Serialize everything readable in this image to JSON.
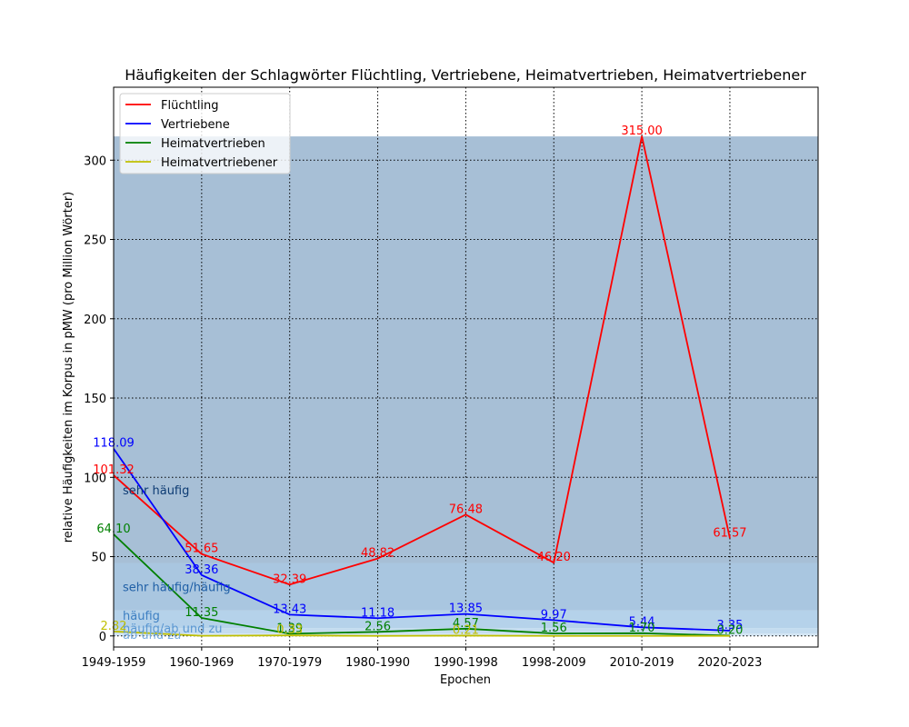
{
  "chart_data": {
    "type": "line",
    "title": "Häufigkeiten der Schlagwörter Flüchtling, Vertriebene, Heimatvertrieben, Heimatvertriebener",
    "xlabel": "Epochen",
    "ylabel": "relative Häufigkeiten im Korpus in pMW (pro Million Wörter)",
    "categories": [
      "1949-1959",
      "1960-1969",
      "1970-1979",
      "1980-1990",
      "1990-1998",
      "1998-2009",
      "2010-2019",
      "2020-2023"
    ],
    "ylim": [
      -7,
      346
    ],
    "yticks": [
      0,
      50,
      100,
      150,
      200,
      250,
      300
    ],
    "grid": true,
    "grid_style": "dotted",
    "legend_position": "top-left",
    "series": [
      {
        "name": "Flüchtling",
        "color": "#ff0000",
        "values": [
          101.32,
          51.65,
          32.39,
          48.82,
          76.48,
          46.2,
          315.0,
          61.57
        ],
        "labels": [
          "101.32",
          "51.65",
          "32.39",
          "48.82",
          "76.48",
          "46.20",
          "315.00",
          "61.57"
        ]
      },
      {
        "name": "Vertriebene",
        "color": "#0000ff",
        "values": [
          118.09,
          38.36,
          13.43,
          11.18,
          13.85,
          9.97,
          5.44,
          3.35
        ],
        "labels": [
          "118.09",
          "38.36",
          "13.43",
          "11.18",
          "13.85",
          "9.97",
          "5.44",
          "3.35"
        ]
      },
      {
        "name": "Heimatvertrieben",
        "color": "#008000",
        "values": [
          64.1,
          11.35,
          1.39,
          2.56,
          4.57,
          1.56,
          1.7,
          0.2
        ],
        "labels": [
          "64.10",
          "11.35",
          "1.39",
          "2.56",
          "4.57",
          "1.56",
          "1.70",
          "0.20"
        ]
      },
      {
        "name": "Heimatvertriebener",
        "color": "#bfbf00",
        "values": [
          2.82,
          0.1,
          0.33,
          0.0,
          0.21,
          0.0,
          0.0,
          0.0
        ],
        "labels": [
          "2.82",
          "",
          "0.33",
          "",
          "0.21",
          "",
          "",
          ""
        ]
      }
    ],
    "frequency_bands": [
      {
        "label": "sehr häufig",
        "from": 46,
        "to": 315,
        "color": "#a7bfd6",
        "label_color": "#0d3b73",
        "label_value": 92
      },
      {
        "label": "sehr häufig/häufig",
        "from": 16,
        "to": 46,
        "color": "#a9c6e0",
        "label_color": "#1f5fa6",
        "label_value": 31
      },
      {
        "label": "häufig",
        "from": 5,
        "to": 16,
        "color": "#b5d2ea",
        "label_color": "#3d7fc2",
        "label_value": 13
      },
      {
        "label": "häufig/ab und zu",
        "from": 1.5,
        "to": 5,
        "color": "#c4dcef",
        "label_color": "#5a97d2",
        "label_value": 5
      },
      {
        "label": "ab und zu",
        "from": 0,
        "to": 1.5,
        "color": "#d3e5f4",
        "label_color": "#7aaee0",
        "label_value": 1
      }
    ]
  }
}
